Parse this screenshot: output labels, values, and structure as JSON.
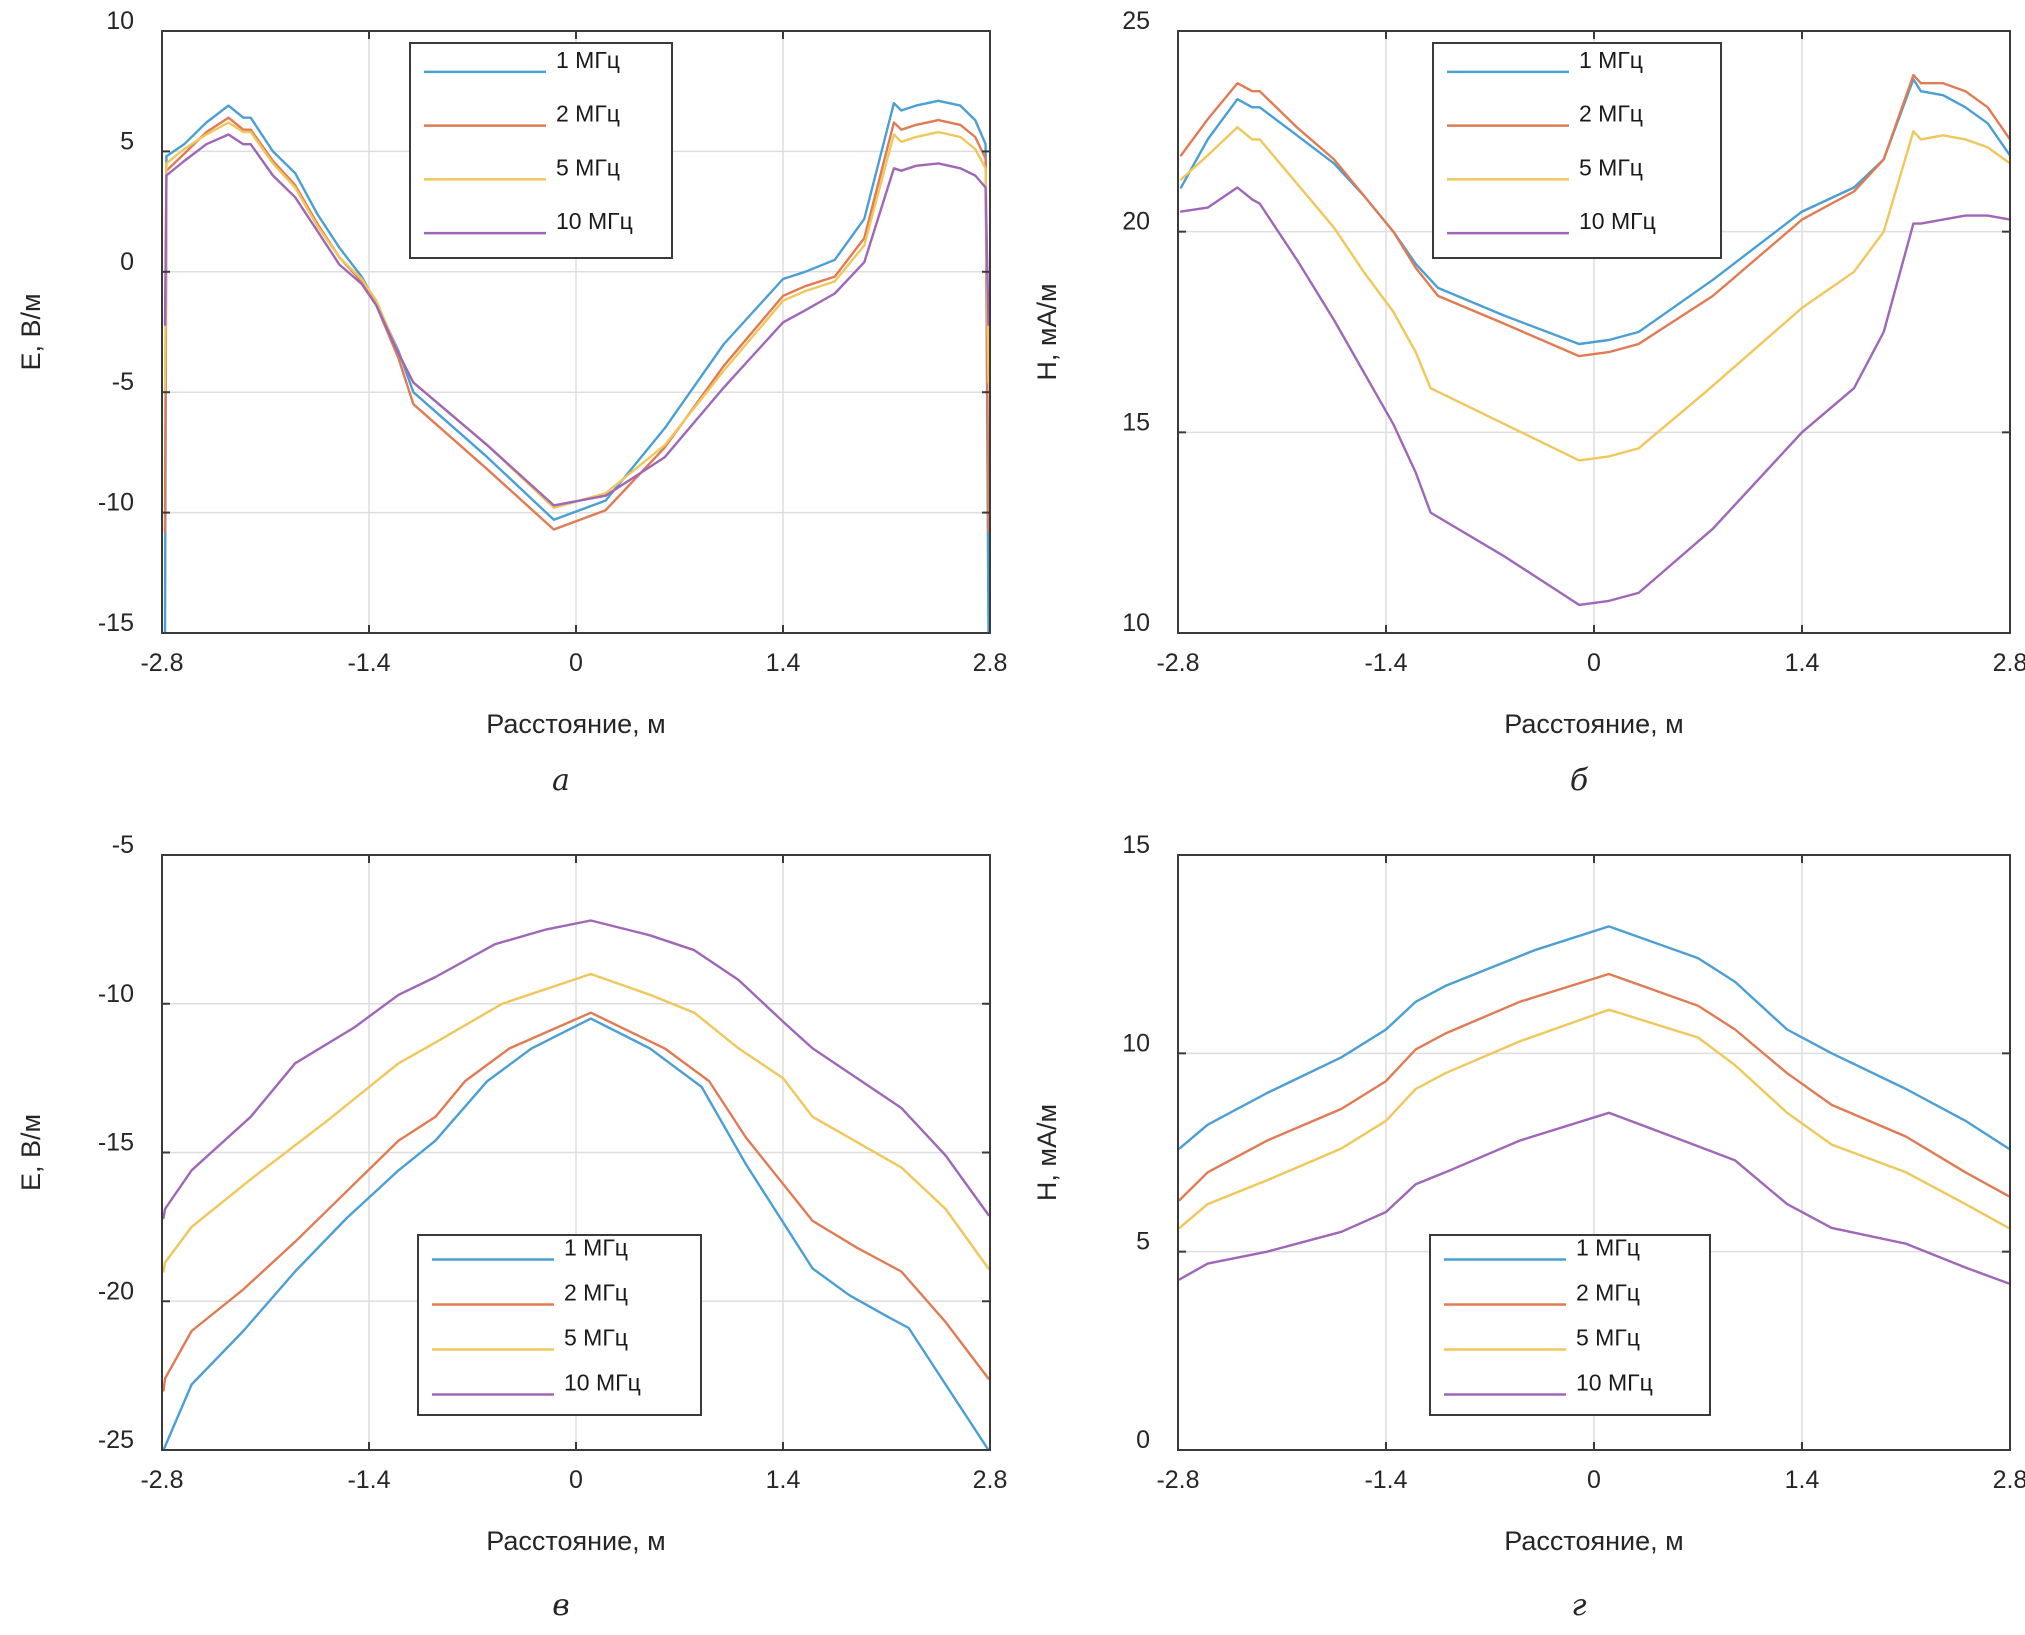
{
  "figure": {
    "colors": {
      "1 МГц": "#4a9fd4",
      "2 МГц": "#e07b53",
      "5 МГц": "#f0c75a",
      "10 МГц": "#a066b8"
    }
  },
  "chart_data": [
    {
      "id": "a",
      "type": "line",
      "caption": "а",
      "title": "",
      "xlabel": "Расстояние, м",
      "ylabel": "E, В/м",
      "xlim": [
        -2.8,
        2.8
      ],
      "ylim": [
        -15,
        10
      ],
      "xticks": [
        -2.8,
        -1.4,
        0,
        1.4,
        2.8
      ],
      "xtick_labels": [
        "-2.8",
        "-1.4",
        "0",
        "1.4",
        "2.8"
      ],
      "yticks": [
        -15,
        -10,
        -5,
        0,
        5,
        10
      ],
      "ytick_labels": [
        "-15",
        "-10",
        "-5",
        "0",
        "5",
        "10"
      ],
      "grid": true,
      "legend_position": "top-center",
      "series": [
        {
          "name": "1 МГц",
          "x": [
            -2.78,
            -2.77,
            -2.65,
            -2.5,
            -2.35,
            -2.25,
            -2.2,
            -2.05,
            -1.9,
            -1.75,
            -1.6,
            -1.45,
            -1.35,
            -1.2,
            -1.1,
            -0.6,
            -0.15,
            0.2,
            0.6,
            1.0,
            1.4,
            1.55,
            1.75,
            1.95,
            2.15,
            2.2,
            2.3,
            2.45,
            2.6,
            2.7,
            2.77,
            2.79
          ],
          "y": [
            -15,
            4.8,
            5.3,
            6.2,
            6.9,
            6.4,
            6.4,
            5.0,
            4.1,
            2.4,
            1.0,
            -0.2,
            -1.3,
            -3.3,
            -5.0,
            -7.7,
            -10.3,
            -9.5,
            -6.5,
            -3.0,
            -0.3,
            0.0,
            0.5,
            2.2,
            7.0,
            6.7,
            6.9,
            7.1,
            6.9,
            6.3,
            5.3,
            -15
          ]
        },
        {
          "name": "2 МГц",
          "x": [
            -2.78,
            -2.77,
            -2.65,
            -2.5,
            -2.35,
            -2.25,
            -2.2,
            -2.05,
            -1.9,
            -1.75,
            -1.6,
            -1.45,
            -1.35,
            -1.2,
            -1.1,
            -0.6,
            -0.15,
            0.2,
            0.6,
            1.0,
            1.4,
            1.55,
            1.75,
            1.95,
            2.15,
            2.2,
            2.3,
            2.45,
            2.6,
            2.7,
            2.77,
            2.79
          ],
          "y": [
            -10.8,
            4.2,
            4.9,
            5.8,
            6.4,
            5.9,
            5.9,
            4.6,
            3.6,
            2.0,
            0.6,
            -0.4,
            -1.4,
            -3.6,
            -5.5,
            -8.2,
            -10.7,
            -9.9,
            -7.3,
            -3.9,
            -1.0,
            -0.6,
            -0.2,
            1.4,
            6.2,
            5.9,
            6.1,
            6.3,
            6.1,
            5.6,
            4.7,
            -10.8
          ]
        },
        {
          "name": "5 МГц",
          "x": [
            -2.78,
            -2.77,
            -2.65,
            -2.5,
            -2.35,
            -2.25,
            -2.2,
            -2.05,
            -1.9,
            -1.75,
            -1.6,
            -1.45,
            -1.35,
            -1.2,
            -1.1,
            -0.6,
            -0.15,
            0.2,
            0.6,
            1.0,
            1.4,
            1.55,
            1.75,
            1.95,
            2.15,
            2.2,
            2.3,
            2.45,
            2.6,
            2.7,
            2.77,
            2.79
          ],
          "y": [
            -5.0,
            4.5,
            5.1,
            5.7,
            6.2,
            5.8,
            5.8,
            4.5,
            3.5,
            1.9,
            0.6,
            -0.3,
            -1.2,
            -3.4,
            -4.6,
            -7.2,
            -9.8,
            -9.2,
            -7.2,
            -4.1,
            -1.2,
            -0.8,
            -0.4,
            1.1,
            5.7,
            5.4,
            5.6,
            5.8,
            5.6,
            5.1,
            4.3,
            -4.6
          ]
        },
        {
          "name": "10 МГц",
          "x": [
            -2.78,
            -2.77,
            -2.65,
            -2.5,
            -2.35,
            -2.25,
            -2.2,
            -2.05,
            -1.9,
            -1.75,
            -1.6,
            -1.45,
            -1.35,
            -1.2,
            -1.1,
            -0.6,
            -0.15,
            0.2,
            0.6,
            1.0,
            1.4,
            1.55,
            1.75,
            1.95,
            2.15,
            2.2,
            2.3,
            2.45,
            2.6,
            2.7,
            2.77,
            2.79
          ],
          "y": [
            -2.2,
            4.0,
            4.6,
            5.3,
            5.7,
            5.3,
            5.3,
            4.0,
            3.1,
            1.7,
            0.3,
            -0.5,
            -1.4,
            -3.4,
            -4.6,
            -7.2,
            -9.7,
            -9.3,
            -7.7,
            -4.8,
            -2.1,
            -1.6,
            -0.9,
            0.4,
            4.3,
            4.2,
            4.4,
            4.5,
            4.3,
            4.0,
            3.5,
            -2.2
          ]
        }
      ]
    },
    {
      "id": "b",
      "type": "line",
      "caption": "б",
      "title": "",
      "xlabel": "Расстояние, м",
      "ylabel": "H, мА/м",
      "xlim": [
        -2.8,
        2.8
      ],
      "ylim": [
        10,
        25
      ],
      "xticks": [
        -2.8,
        -1.4,
        0,
        1.4,
        2.8
      ],
      "xtick_labels": [
        "-2.8",
        "-1.4",
        "0",
        "1.4",
        "2.8"
      ],
      "yticks": [
        10,
        15,
        20,
        25
      ],
      "ytick_labels": [
        "10",
        "15",
        "20",
        "25"
      ],
      "grid": true,
      "legend_position": "top-center",
      "series": [
        {
          "name": "1 МГц",
          "x": [
            -2.78,
            -2.6,
            -2.4,
            -2.3,
            -2.25,
            -2.0,
            -1.75,
            -1.55,
            -1.35,
            -1.2,
            -1.05,
            -0.6,
            -0.1,
            0.1,
            0.3,
            0.8,
            1.4,
            1.75,
            1.95,
            2.15,
            2.2,
            2.35,
            2.5,
            2.65,
            2.8
          ],
          "y": [
            21.1,
            22.3,
            23.3,
            23.1,
            23.1,
            22.4,
            21.7,
            20.9,
            20.0,
            19.2,
            18.6,
            17.9,
            17.2,
            17.3,
            17.5,
            18.8,
            20.5,
            21.1,
            21.8,
            23.8,
            23.5,
            23.4,
            23.1,
            22.7,
            21.9
          ]
        },
        {
          "name": "2 МГц",
          "x": [
            -2.78,
            -2.6,
            -2.4,
            -2.3,
            -2.25,
            -2.0,
            -1.75,
            -1.55,
            -1.35,
            -1.2,
            -1.05,
            -0.6,
            -0.1,
            0.1,
            0.3,
            0.8,
            1.4,
            1.75,
            1.95,
            2.15,
            2.2,
            2.35,
            2.5,
            2.65,
            2.8
          ],
          "y": [
            21.9,
            22.8,
            23.7,
            23.5,
            23.5,
            22.6,
            21.8,
            20.9,
            20.0,
            19.1,
            18.4,
            17.7,
            16.9,
            17.0,
            17.2,
            18.4,
            20.3,
            21.0,
            21.8,
            23.9,
            23.7,
            23.7,
            23.5,
            23.1,
            22.3
          ]
        },
        {
          "name": "5 МГц",
          "x": [
            -2.78,
            -2.6,
            -2.4,
            -2.3,
            -2.25,
            -2.0,
            -1.75,
            -1.55,
            -1.35,
            -1.2,
            -1.1,
            -0.6,
            -0.1,
            0.1,
            0.3,
            0.75,
            1.4,
            1.75,
            1.95,
            2.15,
            2.2,
            2.35,
            2.5,
            2.65,
            2.8
          ],
          "y": [
            21.3,
            21.9,
            22.6,
            22.3,
            22.3,
            21.2,
            20.1,
            19.0,
            18.0,
            17.0,
            16.1,
            15.2,
            14.3,
            14.4,
            14.6,
            16.0,
            18.1,
            19.0,
            20.0,
            22.5,
            22.3,
            22.4,
            22.3,
            22.1,
            21.7
          ]
        },
        {
          "name": "10 МГц",
          "x": [
            -2.78,
            -2.6,
            -2.4,
            -2.3,
            -2.25,
            -2.0,
            -1.75,
            -1.55,
            -1.35,
            -1.2,
            -1.1,
            -0.6,
            -0.1,
            0.1,
            0.3,
            0.8,
            1.4,
            1.75,
            1.95,
            2.15,
            2.2,
            2.35,
            2.5,
            2.65,
            2.8
          ],
          "y": [
            20.5,
            20.6,
            21.1,
            20.8,
            20.7,
            19.3,
            17.8,
            16.5,
            15.2,
            14.0,
            13.0,
            11.9,
            10.7,
            10.8,
            11.0,
            12.6,
            15.0,
            16.1,
            17.5,
            20.2,
            20.2,
            20.3,
            20.4,
            20.4,
            20.3
          ]
        }
      ]
    },
    {
      "id": "c",
      "type": "line",
      "caption": "в",
      "title": "",
      "xlabel": "Расстояние, м",
      "ylabel": "E, В/м",
      "xlim": [
        -2.8,
        2.8
      ],
      "ylim": [
        -25,
        -5
      ],
      "xticks": [
        -2.8,
        -1.4,
        0,
        1.4,
        2.8
      ],
      "xtick_labels": [
        "-2.8",
        "-1.4",
        "0",
        "1.4",
        "2.8"
      ],
      "yticks": [
        -25,
        -20,
        -15,
        -10,
        -5
      ],
      "ytick_labels": [
        "-25",
        "-20",
        "-15",
        "-10",
        "-5"
      ],
      "grid": true,
      "legend_position": "bottom-center",
      "series": [
        {
          "name": "1 МГц",
          "x": [
            -2.79,
            -2.6,
            -2.25,
            -1.9,
            -1.55,
            -1.2,
            -0.95,
            -0.6,
            -0.3,
            0.1,
            0.5,
            0.85,
            1.15,
            1.6,
            1.85,
            2.1,
            2.25,
            2.5,
            2.79
          ],
          "y": [
            -25.0,
            -22.8,
            -21.0,
            -19.0,
            -17.2,
            -15.6,
            -14.6,
            -12.6,
            -11.5,
            -10.5,
            -11.5,
            -12.8,
            -15.4,
            -18.9,
            -19.8,
            -20.5,
            -20.9,
            -22.8,
            -25.0
          ]
        },
        {
          "name": "2 МГц",
          "x": [
            -2.79,
            -2.78,
            -2.6,
            -2.25,
            -1.9,
            -1.55,
            -1.2,
            -0.95,
            -0.75,
            -0.45,
            0.1,
            0.6,
            0.9,
            1.15,
            1.6,
            1.9,
            2.2,
            2.5,
            2.79
          ],
          "y": [
            -23.0,
            -22.6,
            -21.0,
            -19.6,
            -18.0,
            -16.3,
            -14.6,
            -13.8,
            -12.6,
            -11.5,
            -10.3,
            -11.5,
            -12.6,
            -14.5,
            -17.3,
            -18.2,
            -19.0,
            -20.7,
            -22.6
          ]
        },
        {
          "name": "5 МГц",
          "x": [
            -2.79,
            -2.78,
            -2.6,
            -2.2,
            -1.7,
            -1.2,
            -0.95,
            -0.5,
            0.1,
            0.5,
            0.8,
            1.1,
            1.4,
            1.6,
            2.2,
            2.5,
            2.79
          ],
          "y": [
            -19.0,
            -18.7,
            -17.5,
            -15.9,
            -14.0,
            -12.0,
            -11.3,
            -10.0,
            -9.0,
            -9.7,
            -10.3,
            -11.5,
            -12.5,
            -13.8,
            -15.5,
            -16.9,
            -18.9
          ]
        },
        {
          "name": "10 МГц",
          "x": [
            -2.79,
            -2.78,
            -2.6,
            -2.2,
            -1.9,
            -1.5,
            -1.2,
            -0.95,
            -0.55,
            -0.2,
            0.1,
            0.5,
            0.8,
            1.1,
            1.4,
            1.6,
            2.2,
            2.5,
            2.79
          ],
          "y": [
            -17.2,
            -16.9,
            -15.6,
            -13.8,
            -12.0,
            -10.8,
            -9.7,
            -9.1,
            -8.0,
            -7.5,
            -7.2,
            -7.7,
            -8.2,
            -9.2,
            -10.6,
            -11.5,
            -13.5,
            -15.1,
            -17.1
          ]
        }
      ]
    },
    {
      "id": "d",
      "type": "line",
      "caption": "г",
      "title": "",
      "xlabel": "Расстояние, м",
      "ylabel": "H, мА/м",
      "xlim": [
        -2.8,
        2.8
      ],
      "ylim": [
        0,
        15
      ],
      "xticks": [
        -2.8,
        -1.4,
        0,
        1.4,
        2.8
      ],
      "xtick_labels": [
        "-2.8",
        "-1.4",
        "0",
        "1.4",
        "2.8"
      ],
      "yticks": [
        0,
        5,
        10,
        15
      ],
      "ytick_labels": [
        "0",
        "5",
        "10",
        "15"
      ],
      "grid": true,
      "legend_position": "bottom-center",
      "series": [
        {
          "name": "1 МГц",
          "x": [
            -2.79,
            -2.6,
            -2.2,
            -1.7,
            -1.4,
            -1.2,
            -1.0,
            -0.4,
            0.1,
            0.7,
            0.95,
            1.3,
            1.6,
            2.1,
            2.5,
            2.79
          ],
          "y": [
            7.6,
            8.2,
            9.0,
            9.9,
            10.6,
            11.3,
            11.7,
            12.6,
            13.2,
            12.4,
            11.8,
            10.6,
            10.0,
            9.1,
            8.3,
            7.6
          ]
        },
        {
          "name": "2 МГц",
          "x": [
            -2.79,
            -2.6,
            -2.2,
            -1.7,
            -1.4,
            -1.2,
            -1.0,
            -0.5,
            0.1,
            0.7,
            0.95,
            1.3,
            1.6,
            2.1,
            2.5,
            2.79
          ],
          "y": [
            6.3,
            7.0,
            7.8,
            8.6,
            9.3,
            10.1,
            10.5,
            11.3,
            12.0,
            11.2,
            10.6,
            9.5,
            8.7,
            7.9,
            7.0,
            6.4
          ]
        },
        {
          "name": "5 МГц",
          "x": [
            -2.79,
            -2.6,
            -2.2,
            -1.7,
            -1.4,
            -1.2,
            -1.0,
            -0.5,
            0.1,
            0.7,
            0.95,
            1.3,
            1.6,
            2.1,
            2.5,
            2.79
          ],
          "y": [
            5.6,
            6.2,
            6.8,
            7.6,
            8.3,
            9.1,
            9.5,
            10.3,
            11.1,
            10.4,
            9.7,
            8.5,
            7.7,
            7.0,
            6.2,
            5.6
          ]
        },
        {
          "name": "10 МГц",
          "x": [
            -2.79,
            -2.6,
            -2.2,
            -1.7,
            -1.4,
            -1.2,
            -1.0,
            -0.5,
            0.1,
            0.6,
            0.95,
            1.3,
            1.6,
            2.1,
            2.5,
            2.79
          ],
          "y": [
            4.3,
            4.7,
            5.0,
            5.5,
            6.0,
            6.7,
            7.0,
            7.8,
            8.5,
            7.8,
            7.3,
            6.2,
            5.6,
            5.2,
            4.6,
            4.2
          ]
        }
      ]
    }
  ]
}
